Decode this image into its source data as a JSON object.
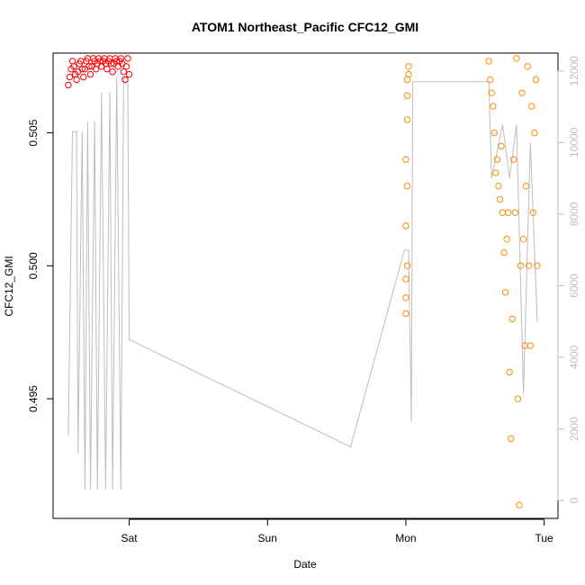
{
  "chart_data": {
    "type": "scatter",
    "title": "ATOM1 Northeast_Pacific CFC12_GMI",
    "xlabel": "Date",
    "ylabel": "CFC12_GMI",
    "x_ticks": [
      "Sat",
      "Sun",
      "Mon",
      "Tue"
    ],
    "x_tick_days": [
      1,
      2,
      3,
      4
    ],
    "xlim_days": [
      0.45,
      4.1
    ],
    "y_ticks": [
      0.495,
      0.5,
      0.505
    ],
    "ylim": [
      0.4905,
      0.508
    ],
    "y2_ticks": [
      0,
      2000,
      4000,
      6000,
      8000,
      10000,
      12000
    ],
    "y2lim": [
      -500,
      12500
    ],
    "colors": {
      "altitude_line": "#bebebe",
      "series_red": "#ff0000",
      "series_orange": "#ff8c00",
      "axis": "#000000",
      "right_axis": "#bebebe"
    },
    "series": [
      {
        "color": "red",
        "marker": "circle",
        "points": [
          [
            0.56,
            0.5068
          ],
          [
            0.57,
            0.5071
          ],
          [
            0.58,
            0.5074
          ],
          [
            0.59,
            0.5077
          ],
          [
            0.6,
            0.5075
          ],
          [
            0.61,
            0.5072
          ],
          [
            0.62,
            0.507
          ],
          [
            0.63,
            0.5073
          ],
          [
            0.64,
            0.5076
          ],
          [
            0.65,
            0.5077
          ],
          [
            0.66,
            0.5074
          ],
          [
            0.67,
            0.5071
          ],
          [
            0.68,
            0.5074
          ],
          [
            0.69,
            0.5077
          ],
          [
            0.7,
            0.5078
          ],
          [
            0.71,
            0.5075
          ],
          [
            0.72,
            0.5072
          ],
          [
            0.73,
            0.5075
          ],
          [
            0.74,
            0.5078
          ],
          [
            0.75,
            0.5077
          ],
          [
            0.76,
            0.5074
          ],
          [
            0.77,
            0.5076
          ],
          [
            0.78,
            0.5078
          ],
          [
            0.79,
            0.5077
          ],
          [
            0.8,
            0.5075
          ],
          [
            0.81,
            0.5077
          ],
          [
            0.82,
            0.5078
          ],
          [
            0.83,
            0.5076
          ],
          [
            0.84,
            0.5074
          ],
          [
            0.85,
            0.5077
          ],
          [
            0.86,
            0.5078
          ],
          [
            0.87,
            0.5076
          ],
          [
            0.88,
            0.5073
          ],
          [
            0.89,
            0.5076
          ],
          [
            0.9,
            0.5078
          ],
          [
            0.91,
            0.5077
          ],
          [
            0.92,
            0.5075
          ],
          [
            0.93,
            0.5077
          ],
          [
            0.94,
            0.5078
          ],
          [
            0.95,
            0.5076
          ],
          [
            0.96,
            0.5073
          ],
          [
            0.97,
            0.507
          ],
          [
            0.98,
            0.5075
          ],
          [
            0.99,
            0.5078
          ],
          [
            1.0,
            0.5072
          ]
        ]
      },
      {
        "color": "orange",
        "marker": "circle",
        "points": [
          [
            3.0,
            0.4988
          ],
          [
            3.0,
            0.4982
          ],
          [
            3.01,
            0.5064
          ],
          [
            3.01,
            0.507
          ],
          [
            3.01,
            0.5055
          ],
          [
            3.02,
            0.5075
          ],
          [
            3.02,
            0.5072
          ],
          [
            3.0,
            0.504
          ],
          [
            3.0,
            0.5015
          ],
          [
            3.0,
            0.4995
          ],
          [
            3.01,
            0.503
          ],
          [
            3.01,
            0.5
          ],
          [
            3.6,
            0.5077
          ],
          [
            3.61,
            0.507
          ],
          [
            3.62,
            0.5065
          ],
          [
            3.63,
            0.506
          ],
          [
            3.64,
            0.505
          ],
          [
            3.65,
            0.5035
          ],
          [
            3.66,
            0.504
          ],
          [
            3.67,
            0.503
          ],
          [
            3.68,
            0.5025
          ],
          [
            3.69,
            0.5045
          ],
          [
            3.7,
            0.502
          ],
          [
            3.71,
            0.5005
          ],
          [
            3.72,
            0.499
          ],
          [
            3.73,
            0.501
          ],
          [
            3.74,
            0.502
          ],
          [
            3.75,
            0.496
          ],
          [
            3.76,
            0.4935
          ],
          [
            3.77,
            0.498
          ],
          [
            3.78,
            0.504
          ],
          [
            3.79,
            0.502
          ],
          [
            3.8,
            0.5078
          ],
          [
            3.81,
            0.495
          ],
          [
            3.82,
            0.491
          ],
          [
            3.83,
            0.5
          ],
          [
            3.84,
            0.5065
          ],
          [
            3.85,
            0.501
          ],
          [
            3.86,
            0.497
          ],
          [
            3.87,
            0.503
          ],
          [
            3.88,
            0.5075
          ],
          [
            3.89,
            0.5
          ],
          [
            3.9,
            0.497
          ],
          [
            3.91,
            0.506
          ],
          [
            3.92,
            0.502
          ],
          [
            3.93,
            0.505
          ],
          [
            3.94,
            0.507
          ],
          [
            3.95,
            0.5
          ]
        ]
      }
    ],
    "altitude_line_points": [
      [
        0.56,
        1800
      ],
      [
        0.59,
        10300
      ],
      [
        0.62,
        10300
      ],
      [
        0.63,
        1300
      ],
      [
        0.66,
        10300
      ],
      [
        0.68,
        300
      ],
      [
        0.7,
        10600
      ],
      [
        0.72,
        300
      ],
      [
        0.75,
        10600
      ],
      [
        0.77,
        300
      ],
      [
        0.8,
        11400
      ],
      [
        0.83,
        300
      ],
      [
        0.86,
        11400
      ],
      [
        0.88,
        300
      ],
      [
        0.91,
        11800
      ],
      [
        0.94,
        300
      ],
      [
        0.96,
        11800
      ],
      [
        0.99,
        11800
      ],
      [
        1.0,
        4500
      ],
      [
        2.6,
        1500
      ],
      [
        2.99,
        7000
      ],
      [
        3.02,
        7000
      ],
      [
        3.04,
        2200
      ],
      [
        3.05,
        11700
      ],
      [
        3.6,
        11700
      ],
      [
        3.62,
        9000
      ],
      [
        3.7,
        10500
      ],
      [
        3.75,
        9000
      ],
      [
        3.8,
        10500
      ],
      [
        3.85,
        3000
      ],
      [
        3.9,
        10000
      ],
      [
        3.95,
        5000
      ]
    ]
  }
}
